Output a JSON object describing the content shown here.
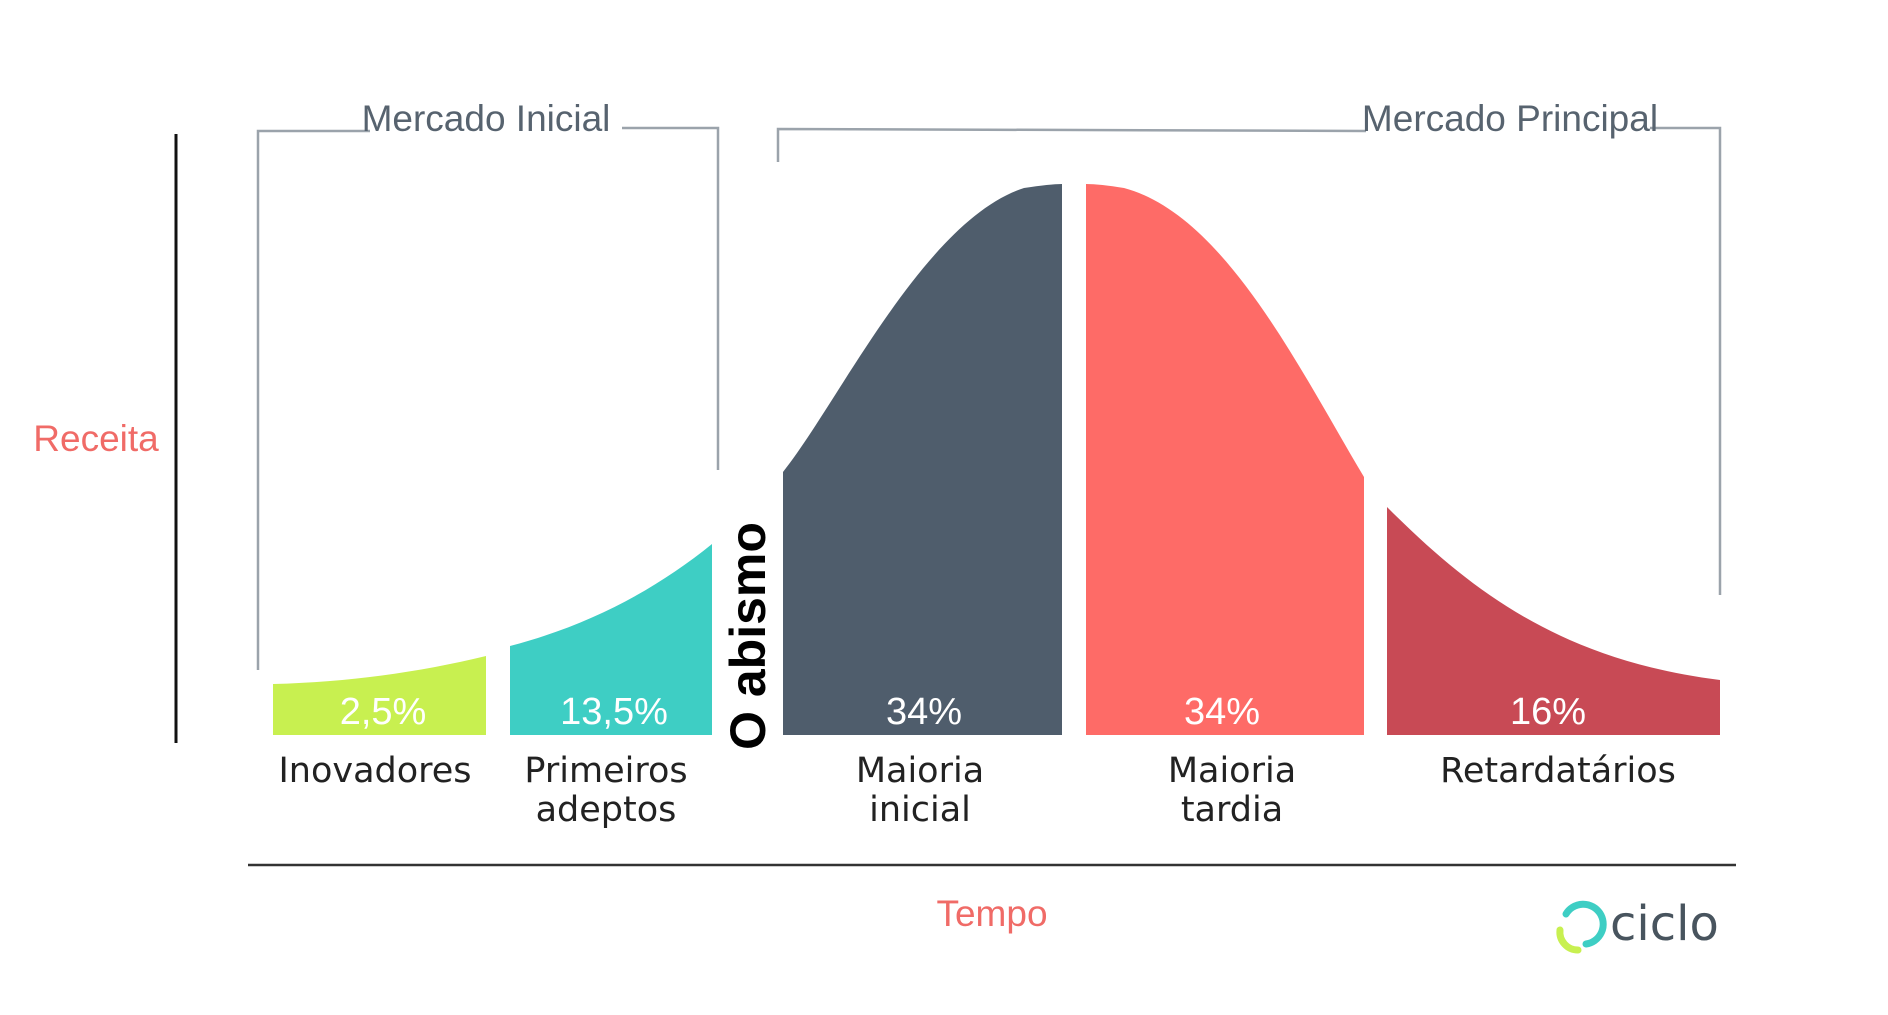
{
  "brackets": {
    "initial_market": "Mercado Inicial",
    "main_market": "Mercado Principal"
  },
  "axes": {
    "ylabel": "Receita",
    "xlabel": "Tempo"
  },
  "chasm_label": "O abismo",
  "segments": [
    {
      "id": "innovators",
      "label_line1": "Inovadores",
      "label_line2": "",
      "percent": "2,5%",
      "color": "#c8f050"
    },
    {
      "id": "early-adopters",
      "label_line1": "Primeiros",
      "label_line2": "adeptos",
      "percent": "13,5%",
      "color": "#3ecec4"
    },
    {
      "id": "early-majority",
      "label_line1": "Maioria",
      "label_line2": "inicial",
      "percent": "34%",
      "color": "#4f5d6c"
    },
    {
      "id": "late-majority",
      "label_line1": "Maioria",
      "label_line2": "tardia",
      "percent": "34%",
      "color": "#fe6b67"
    },
    {
      "id": "laggards",
      "label_line1": "Retardatários",
      "label_line2": "",
      "percent": "16%",
      "color": "#c84a55"
    }
  ],
  "logo": {
    "text": "ciclo",
    "icon": "ciclo-logo-icon",
    "colors": [
      "#3ecec4",
      "#c8f050",
      "#48545e"
    ]
  }
}
